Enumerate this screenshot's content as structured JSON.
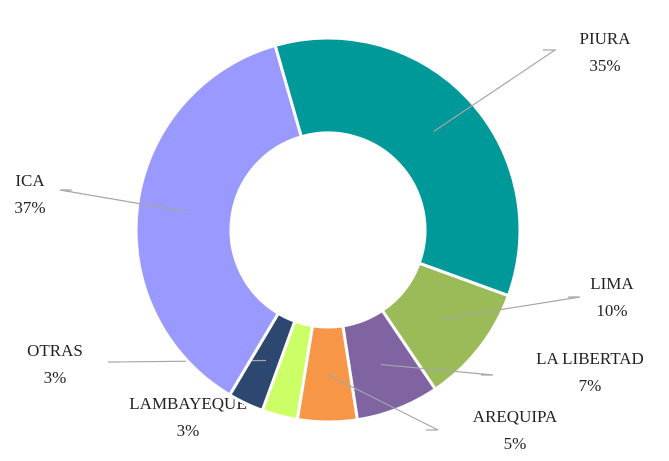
{
  "chart_data": {
    "type": "donut",
    "categories": [
      "PIURA",
      "LIMA",
      "LA LIBERTAD",
      "AREQUIPA",
      "LAMBAYEQUE",
      "OTRAS",
      "ICA"
    ],
    "values": [
      35,
      10,
      7,
      5,
      3,
      3,
      37
    ],
    "value_labels": [
      "35%",
      "10%",
      "7%",
      "5%",
      "3%",
      "3%",
      "37%"
    ],
    "colors": [
      "#009999",
      "#9bbb59",
      "#8064a2",
      "#f79646",
      "#ccff66",
      "#2c4770",
      "#9999ff"
    ]
  }
}
